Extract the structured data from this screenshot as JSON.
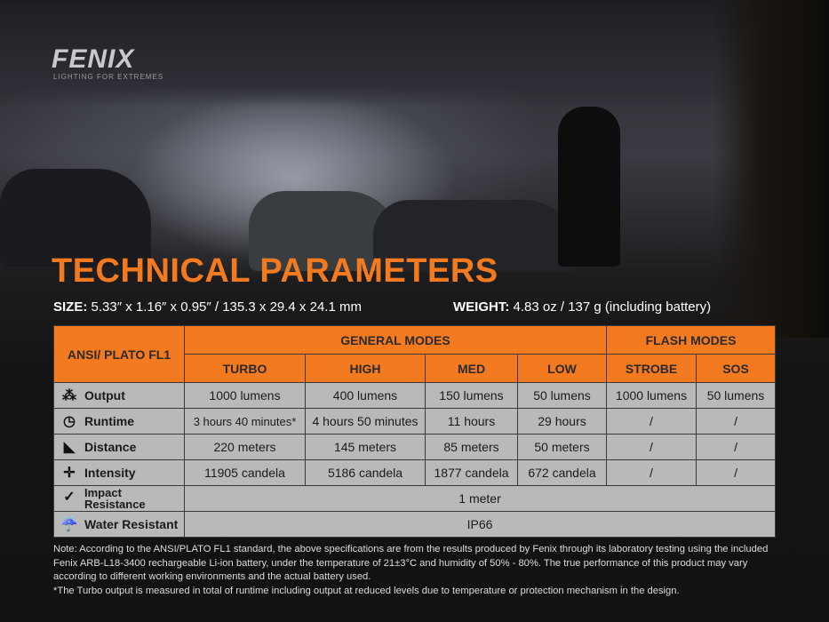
{
  "brand": {
    "logo": "FENIX",
    "tagline": "LIGHTING FOR EXTREMES"
  },
  "title": "TECHNICAL PARAMETERS",
  "size": {
    "label": "SIZE:",
    "value": "5.33″ x 1.16″ x 0.95″ / 135.3 x 29.4 x 24.1 mm"
  },
  "weight": {
    "label": "WEIGHT:",
    "value": "4.83 oz / 137 g (including battery)"
  },
  "table": {
    "corner": "ANSI/ PLATO  FL1",
    "groups": [
      "GENERAL MODES",
      "FLASH MODES"
    ],
    "modes": [
      "TURBO",
      "HIGH",
      "MED",
      "LOW",
      "STROBE",
      "SOS"
    ],
    "rows": [
      {
        "icon": "output-icon",
        "label": "Output",
        "values": [
          "1000 lumens",
          "400 lumens",
          "150 lumens",
          "50 lumens",
          "1000 lumens",
          "50 lumens"
        ]
      },
      {
        "icon": "clock-icon",
        "label": "Runtime",
        "values": [
          "3 hours 40 minutes*",
          "4 hours 50 minutes",
          "11 hours",
          "29 hours",
          "/",
          "/"
        ]
      },
      {
        "icon": "beam-distance-icon",
        "label": "Distance",
        "values": [
          "220 meters",
          "145 meters",
          "85 meters",
          "50 meters",
          "/",
          "/"
        ]
      },
      {
        "icon": "intensity-icon",
        "label": "Intensity",
        "values": [
          "11905 candela",
          "5186 candela",
          "1877 candela",
          "672 candela",
          "/",
          "/"
        ]
      }
    ],
    "impact": {
      "icon": "impact-icon",
      "label1": "Impact",
      "label2": "Resistance",
      "value": "1 meter"
    },
    "water": {
      "icon": "water-icon",
      "label": "Water Resistant",
      "value": "IP66"
    }
  },
  "notes": [
    "Note: According to the ANSI/PLATO FL1 standard, the above specifications are from the results produced by Fenix through its laboratory testing using the included Fenix ARB-L18-3400 rechargeable Li-ion battery, under the temperature of 21±3°C and humidity of 50% - 80%. The true performance of this product may vary according to different working environments and the actual battery used.",
    "*The Turbo output is measured in total of runtime including output at reduced levels due to temperature or protection mechanism in the design."
  ],
  "colors": {
    "accent": "#f47a20",
    "cell": "#b9b9b9"
  }
}
